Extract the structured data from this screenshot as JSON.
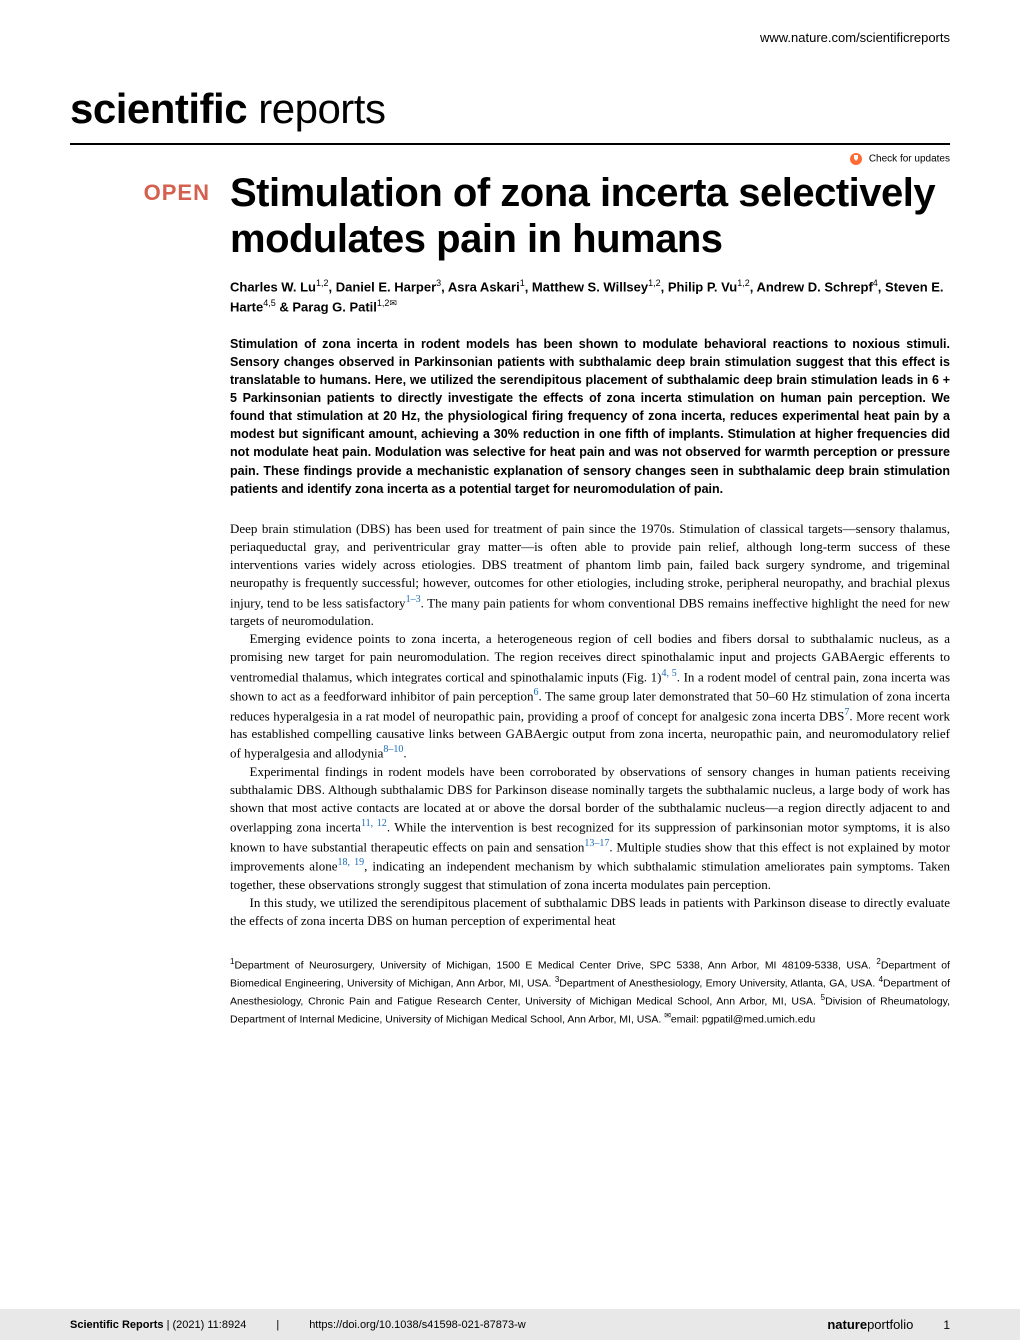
{
  "header": {
    "url": "www.nature.com/scientificreports",
    "journal_bold": "scientific",
    "journal_light": " reports",
    "check_updates": "Check for updates",
    "open_badge": "OPEN"
  },
  "article": {
    "title": "Stimulation of zona incerta selectively modulates pain in humans",
    "authors_html": "Charles W. Lu<sup>1,2</sup>, Daniel E. Harper<sup>3</sup>, Asra Askari<sup>1</sup>, Matthew S. Willsey<sup>1,2</sup>, Philip P. Vu<sup>1,2</sup>, Andrew D. Schrepf<sup>4</sup>, Steven E. Harte<sup>4,5</sup> & Parag G. Patil<sup>1,2✉</sup>",
    "abstract": "Stimulation of zona incerta in rodent models has been shown to modulate behavioral reactions to noxious stimuli. Sensory changes observed in Parkinsonian patients with subthalamic deep brain stimulation suggest that this effect is translatable to humans. Here, we utilized the serendipitous placement of subthalamic deep brain stimulation leads in 6 + 5 Parkinsonian patients to directly investigate the effects of zona incerta stimulation on human pain perception. We found that stimulation at 20 Hz, the physiological firing frequency of zona incerta, reduces experimental heat pain by a modest but significant amount, achieving a 30% reduction in one fifth of implants. Stimulation at higher frequencies did not modulate heat pain. Modulation was selective for heat pain and was not observed for warmth perception or pressure pain. These findings provide a mechanistic explanation of sensory changes seen in subthalamic deep brain stimulation patients and identify zona incerta as a potential target for neuromodulation of pain.",
    "paragraphs": [
      "Deep brain stimulation (DBS) has been used for treatment of pain since the 1970s. Stimulation of classical targets—sensory thalamus, periaqueductal gray, and periventricular gray matter—is often able to provide pain relief, although long-term success of these interventions varies widely across etiologies. DBS treatment of phantom limb pain, failed back surgery syndrome, and trigeminal neuropathy is frequently successful; however, outcomes for other etiologies, including stroke, peripheral neuropathy, and brachial plexus injury, tend to be less satisfactory<span class=\"ref-link\">1–3</span>. The many pain patients for whom conventional DBS remains ineffective highlight the need for new targets of neuromodulation.",
      "Emerging evidence points to zona incerta, a heterogeneous region of cell bodies and fibers dorsal to subthalamic nucleus, as a promising new target for pain neuromodulation. The region receives direct spinothalamic input and projects GABAergic efferents to ventromedial thalamus, which integrates cortical and spinothalamic inputs (Fig. 1)<span class=\"ref-link\">4, 5</span>. In a rodent model of central pain, zona incerta was shown to act as a feedforward inhibitor of pain perception<span class=\"ref-link\">6</span>. The same group later demonstrated that 50–60 Hz stimulation of zona incerta reduces hyperalgesia in a rat model of neuropathic pain, providing a proof of concept for analgesic zona incerta DBS<span class=\"ref-link\">7</span>. More recent work has established compelling causative links between GABAergic output from zona incerta, neuropathic pain, and neuromodulatory relief of hyperalgesia and allodynia<span class=\"ref-link\">8–10</span>.",
      "Experimental findings in rodent models have been corroborated by observations of sensory changes in human patients receiving subthalamic DBS. Although subthalamic DBS for Parkinson disease nominally targets the subthalamic nucleus, a large body of work has shown that most active contacts are located at or above the dorsal border of the subthalamic nucleus—a region directly adjacent to and overlapping zona incerta<span class=\"ref-link\">11, 12</span>. While the intervention is best recognized for its suppression of parkinsonian motor symptoms, it is also known to have substantial therapeutic effects on pain and sensation<span class=\"ref-link\">13–17</span>. Multiple studies show that this effect is not explained by motor improvements alone<span class=\"ref-link\">18, 19</span>, indicating an independent mechanism by which subthalamic stimulation ameliorates pain symptoms. Taken together, these observations strongly suggest that stimulation of zona incerta modulates pain perception.",
      "In this study, we utilized the serendipitous placement of subthalamic DBS leads in patients with Parkinson disease to directly evaluate the effects of zona incerta DBS on human perception of experimental heat"
    ],
    "affiliations": "<sup>1</sup>Department of Neurosurgery, University of Michigan, 1500 E Medical Center Drive, SPC 5338, Ann Arbor, MI 48109-5338, USA. <sup>2</sup>Department of Biomedical Engineering, University of Michigan, Ann Arbor, MI, USA. <sup>3</sup>Department of Anesthesiology, Emory University, Atlanta, GA, USA. <sup>4</sup>Department of Anesthesiology, Chronic Pain and Fatigue Research Center, University of Michigan Medical School, Ann Arbor, MI, USA. <sup>5</sup>Division of Rheumatology, Department of Internal Medicine, University of Michigan Medical School, Ann Arbor, MI, USA. <sup>✉</sup>email: pgpatil@med.umich.edu"
  },
  "footer": {
    "journal": "Scientific Reports",
    "citation": "(2021) 11:8924",
    "doi": "https://doi.org/10.1038/s41598-021-87873-w",
    "publisher_bold": "nature",
    "publisher_light": "portfolio",
    "page": "1"
  }
}
